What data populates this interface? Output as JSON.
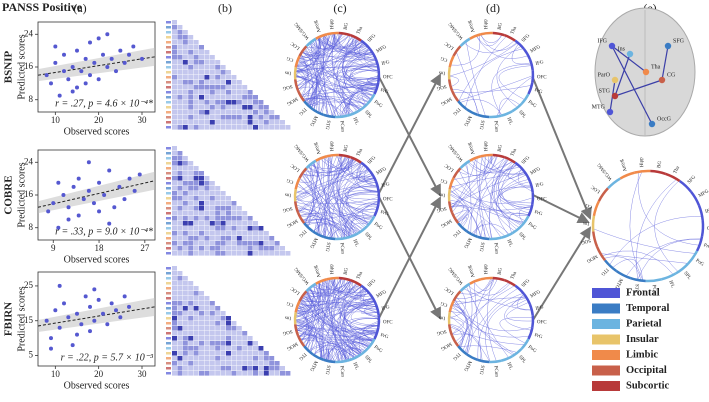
{
  "figure": {
    "title": "PANSS Positive",
    "panel_labels": [
      "(a)",
      "(b)",
      "(c)",
      "(d)",
      "(e)"
    ]
  },
  "chart_data": [
    {
      "type": "scatter",
      "title": "BSNIP",
      "y_label": "Predicted scores",
      "x_label": "Observed scores",
      "annotation": "r = .27, p = 4.6 × 10⁻⁴*",
      "color": "#5558d0",
      "x": [
        8,
        9,
        10,
        11,
        12,
        12,
        13,
        14,
        15,
        15,
        16,
        17,
        18,
        18,
        19,
        20,
        21,
        22,
        22,
        23,
        24,
        25,
        26,
        27,
        28,
        30,
        10,
        14,
        17,
        20
      ],
      "y": [
        14,
        12,
        17,
        9,
        15,
        19,
        13,
        16,
        11,
        20,
        15,
        18,
        14,
        22,
        17,
        13,
        19,
        16,
        24,
        18,
        15,
        20,
        17,
        19,
        21,
        18,
        21,
        10,
        12,
        23
      ],
      "fit_line": {
        "x": [
          6,
          33
        ],
        "y": [
          14,
          18.5
        ]
      },
      "xlim": [
        6,
        33
      ],
      "ylim": [
        5,
        27
      ],
      "xticks": [
        10,
        20,
        30
      ],
      "yticks": [
        8,
        16,
        24
      ]
    },
    {
      "type": "scatter",
      "title": "COBRE",
      "y_label": "Predicted scores",
      "x_label": "Observed scores",
      "annotation": "r = .33, p = 9.0 × 10⁻⁴*",
      "color": "#5558d0",
      "x": [
        8,
        9,
        10,
        11,
        12,
        13,
        14,
        14,
        15,
        16,
        17,
        18,
        19,
        20,
        21,
        22,
        23,
        24,
        25,
        26,
        12,
        16,
        20,
        10,
        18
      ],
      "y": [
        12,
        14,
        8,
        16,
        13,
        18,
        11,
        20,
        15,
        17,
        14,
        19,
        16,
        22,
        13,
        18,
        15,
        20,
        17,
        21,
        10,
        24,
        9,
        19,
        12
      ],
      "fit_line": {
        "x": [
          6,
          29
        ],
        "y": [
          13,
          19.5
        ]
      },
      "xlim": [
        6,
        29
      ],
      "ylim": [
        5,
        27
      ],
      "xticks": [
        9,
        18,
        27
      ],
      "yticks": [
        8,
        16,
        24
      ]
    },
    {
      "type": "scatter",
      "title": "FBIRN",
      "y_label": "Predicted scores",
      "x_label": "Observed scores",
      "annotation": "r = .22, p = 5.7 × 10⁻³",
      "color": "#5558d0",
      "x": [
        8,
        9,
        10,
        11,
        12,
        13,
        14,
        15,
        16,
        17,
        18,
        18,
        19,
        20,
        21,
        22,
        23,
        24,
        25,
        26,
        11,
        15,
        19,
        9,
        27
      ],
      "y": [
        15,
        10,
        18,
        13,
        20,
        16,
        8,
        17,
        14,
        22,
        12,
        19,
        15,
        21,
        17,
        14,
        20,
        18,
        16,
        22,
        25,
        11,
        24,
        7,
        19
      ],
      "fit_line": {
        "x": [
          6,
          33
        ],
        "y": [
          13.5,
          19
        ]
      },
      "xlim": [
        6,
        33
      ],
      "ylim": [
        2,
        29
      ],
      "xticks": [
        10,
        20,
        30
      ],
      "yticks": [
        5,
        15,
        25
      ]
    }
  ],
  "regions": [
    "Amyg",
    "Hipp",
    "BG",
    "Tha",
    "SFG",
    "MFG",
    "IFG",
    "OFC",
    "PrG",
    "PoG",
    "SPL",
    "IPL",
    "PCun",
    "STG",
    "MTG",
    "ITG",
    "MOG",
    "SOG",
    "Ins",
    "CG",
    "LOC",
    "WG/SMG"
  ],
  "brain_labels": [
    "IFG",
    "SFG",
    "Ins",
    "ParO",
    "Tha",
    "CG",
    "STG",
    "MTG",
    "OccG"
  ],
  "legend": [
    {
      "name": "Frontal",
      "color": "#4f55d6"
    },
    {
      "name": "Temporal",
      "color": "#3a7cc4"
    },
    {
      "name": "Parietal",
      "color": "#6cb4e0"
    },
    {
      "name": "Insular",
      "color": "#e8c46a"
    },
    {
      "name": "Limbic",
      "color": "#f08a4a"
    },
    {
      "name": "Occipital",
      "color": "#c8604a"
    },
    {
      "name": "Subcortic",
      "color": "#b83a3a"
    }
  ]
}
